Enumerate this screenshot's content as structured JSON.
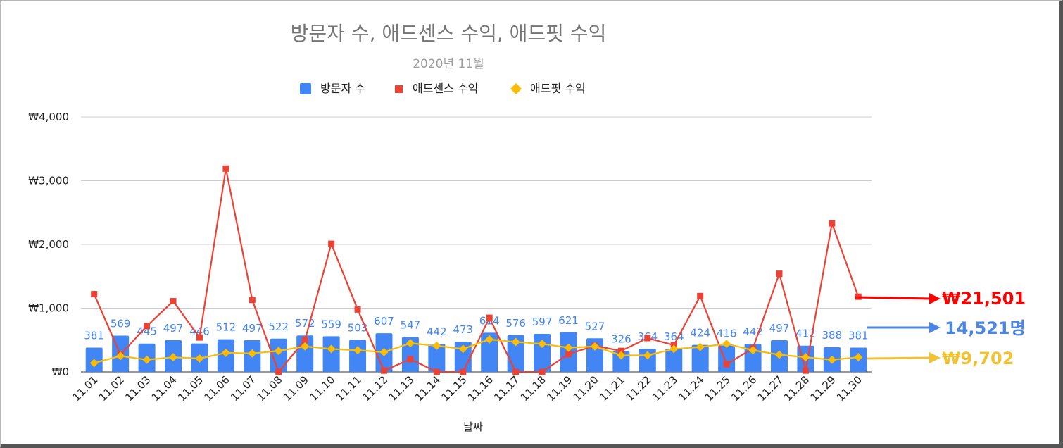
{
  "chart_data": {
    "type": "bar",
    "title": "방문자 수, 애드센스 수익, 애드핏 수익",
    "subtitle": "2020년 11월",
    "xlabel": "날짜",
    "ylabel": "",
    "ylim": [
      0,
      4000
    ],
    "yticks": [
      "₩0",
      "₩1,000",
      "₩2,000",
      "₩3,000",
      "₩4,000"
    ],
    "grid": true,
    "legend_position": "top",
    "categories": [
      "11.01",
      "11.02",
      "11.03",
      "11.04",
      "11.05",
      "11.06",
      "11.07",
      "11.08",
      "11.09",
      "11.10",
      "11.11",
      "11.12",
      "11.13",
      "11.14",
      "11.15",
      "11.16",
      "11.17",
      "11.18",
      "11.19",
      "11.20",
      "11.21",
      "11.22",
      "11.23",
      "11.24",
      "11.25",
      "11.26",
      "11.27",
      "11.28",
      "11.29",
      "11.30"
    ],
    "series": [
      {
        "name": "방문자 수",
        "type": "bar",
        "color": "#4285f4",
        "values": [
          381,
          569,
          445,
          497,
          446,
          512,
          497,
          522,
          572,
          559,
          503,
          607,
          547,
          442,
          473,
          614,
          576,
          597,
          621,
          527,
          326,
          364,
          364,
          424,
          416,
          442,
          497,
          412,
          388,
          381
        ]
      },
      {
        "name": "애드센스 수익",
        "type": "line",
        "marker": "square",
        "color": "#ea4335",
        "values": [
          1220,
          270,
          720,
          1110,
          540,
          3190,
          1130,
          0,
          500,
          2010,
          980,
          20,
          200,
          0,
          0,
          850,
          0,
          0,
          280,
          410,
          330,
          530,
          420,
          1190,
          120,
          370,
          1540,
          20,
          2330,
          1180
        ]
      },
      {
        "name": "애드핏 수익",
        "type": "line",
        "marker": "diamond",
        "color": "#fbbc04",
        "values": [
          140,
          250,
          190,
          230,
          210,
          300,
          290,
          330,
          400,
          360,
          340,
          310,
          450,
          410,
          360,
          510,
          470,
          440,
          380,
          400,
          260,
          260,
          360,
          390,
          440,
          340,
          270,
          230,
          190,
          230
        ]
      }
    ],
    "annotations": [
      {
        "text": "₩21,501",
        "color": "#ff0000"
      },
      {
        "text": "14,521명",
        "color": "#4a86e8"
      },
      {
        "text": "₩9,702",
        "color": "#f1c232"
      }
    ]
  }
}
